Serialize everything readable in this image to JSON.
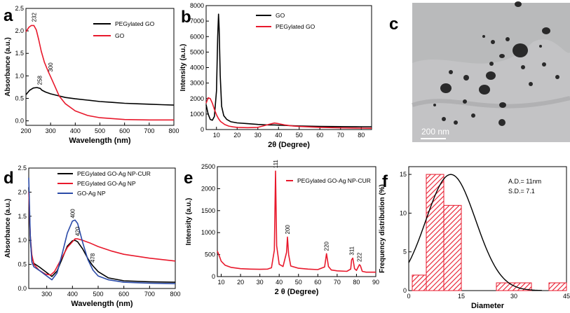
{
  "chart_data": [
    {
      "type": "line",
      "panel_label": "a",
      "xlabel": "Wavelength (nm)",
      "ylabel": "Absorbance (a.u.)",
      "xlim": [
        200,
        800
      ],
      "ylim": [
        -0.1,
        2.5
      ],
      "xticks": [
        200,
        300,
        400,
        500,
        600,
        700,
        800
      ],
      "yticks": [
        0.0,
        0.5,
        1.0,
        1.5,
        2.0,
        2.5
      ],
      "ytick_labels": [
        "0.0",
        "0.5",
        "1.0",
        "1.5",
        "2.0",
        "2.5"
      ],
      "legend_position": "top-right",
      "series": [
        {
          "name": "PEGylated GO",
          "color": "#000000",
          "x": [
            200,
            215,
            230,
            245,
            258,
            265,
            280,
            300,
            330,
            360,
            400,
            450,
            500,
            550,
            600,
            650,
            700,
            750,
            800
          ],
          "y": [
            0.58,
            0.68,
            0.73,
            0.74,
            0.72,
            0.68,
            0.64,
            0.6,
            0.56,
            0.52,
            0.49,
            0.46,
            0.43,
            0.41,
            0.39,
            0.38,
            0.37,
            0.36,
            0.35
          ]
        },
        {
          "name": "GO",
          "color": "#e8192c",
          "x": [
            200,
            212,
            222,
            232,
            242,
            252,
            262,
            275,
            290,
            300,
            315,
            335,
            360,
            400,
            450,
            500,
            600,
            700,
            800
          ],
          "y": [
            1.98,
            2.08,
            2.12,
            2.12,
            2.02,
            1.8,
            1.55,
            1.3,
            1.1,
            0.98,
            0.8,
            0.55,
            0.38,
            0.22,
            0.12,
            0.07,
            0.03,
            0.02,
            0.02
          ]
        }
      ],
      "annotations": [
        {
          "text": "232",
          "x": 232,
          "y": 2.12
        },
        {
          "text": "300",
          "x": 300,
          "y": 0.98
        },
        {
          "text": "258",
          "x": 258,
          "y": 0.72
        }
      ]
    },
    {
      "type": "line",
      "panel_label": "b",
      "xlabel": "2θ (Degree)",
      "ylabel": "Intensity (a.u.)",
      "xlim": [
        5,
        85
      ],
      "ylim": [
        0,
        8000
      ],
      "xticks": [
        10,
        20,
        30,
        40,
        50,
        60,
        70,
        80
      ],
      "yticks": [
        0,
        1000,
        2000,
        3000,
        4000,
        5000,
        6000,
        7000,
        8000
      ],
      "legend_position": "top-right",
      "series": [
        {
          "name": "GO",
          "color": "#000000",
          "x": [
            5,
            6,
            7,
            8,
            9,
            10,
            10.6,
            11,
            11.3,
            11.8,
            12.5,
            13.5,
            15,
            17,
            20,
            25,
            30,
            35,
            38,
            42,
            50,
            60,
            70,
            80,
            85
          ],
          "y": [
            1600,
            1000,
            650,
            600,
            850,
            2500,
            6000,
            7450,
            6500,
            3500,
            1500,
            900,
            650,
            500,
            430,
            380,
            330,
            300,
            300,
            270,
            230,
            200,
            190,
            180,
            180
          ]
        },
        {
          "name": "PEGylated GO",
          "color": "#e8192c",
          "x": [
            5,
            6,
            7,
            8,
            9,
            10,
            11,
            12,
            14,
            16,
            18,
            20,
            25,
            30,
            35,
            38,
            40,
            43,
            47,
            50,
            60,
            70,
            80,
            85
          ],
          "y": [
            1700,
            2050,
            2000,
            1700,
            1300,
            950,
            700,
            520,
            320,
            220,
            170,
            140,
            120,
            140,
            320,
            420,
            380,
            300,
            230,
            200,
            140,
            110,
            90,
            80
          ]
        }
      ]
    },
    {
      "type": "image",
      "panel_label": "c",
      "scale_bar": "200 nm"
    },
    {
      "type": "line",
      "panel_label": "d",
      "xlabel": "Wavelength (nm)",
      "ylabel": "Absorbance (a.u.)",
      "xlim": [
        230,
        800
      ],
      "ylim": [
        0.0,
        2.5
      ],
      "xticks": [
        300,
        400,
        500,
        600,
        700,
        800
      ],
      "yticks": [
        0.0,
        0.5,
        1.0,
        1.5,
        2.0,
        2.5
      ],
      "ytick_labels": [
        "0.0",
        "0.5",
        "1.0",
        "1.5",
        "2.0",
        "2.5"
      ],
      "legend_position": "top-right",
      "series": [
        {
          "name": "PEGylated GO-Ag NP-CUR",
          "color": "#000000",
          "x": [
            230,
            236,
            242,
            250,
            270,
            295,
            320,
            340,
            360,
            380,
            400,
            410,
            420,
            440,
            460,
            478,
            500,
            540,
            600,
            700,
            800
          ],
          "y": [
            2.1,
            1.0,
            0.65,
            0.52,
            0.45,
            0.35,
            0.25,
            0.36,
            0.62,
            0.88,
            0.99,
            1.0,
            0.97,
            0.82,
            0.62,
            0.48,
            0.35,
            0.22,
            0.16,
            0.14,
            0.13
          ]
        },
        {
          "name": "PEGylated GO-Ag NP",
          "color": "#e8192c",
          "x": [
            230,
            236,
            242,
            250,
            270,
            295,
            315,
            330,
            350,
            380,
            410,
            420,
            440,
            470,
            500,
            550,
            600,
            700,
            800
          ],
          "y": [
            2.0,
            1.1,
            0.7,
            0.5,
            0.38,
            0.3,
            0.28,
            0.35,
            0.55,
            0.85,
            1.03,
            1.03,
            1.0,
            0.94,
            0.87,
            0.78,
            0.71,
            0.63,
            0.57
          ]
        },
        {
          "name": "GO-Ag NP",
          "color": "#2b4ba8",
          "x": [
            230,
            236,
            242,
            250,
            270,
            295,
            320,
            340,
            360,
            380,
            400,
            410,
            420,
            440,
            460,
            480,
            500,
            540,
            600,
            700,
            800
          ],
          "y": [
            2.3,
            1.1,
            0.55,
            0.45,
            0.38,
            0.28,
            0.18,
            0.32,
            0.72,
            1.15,
            1.4,
            1.42,
            1.35,
            0.95,
            0.6,
            0.38,
            0.26,
            0.18,
            0.13,
            0.11,
            0.1
          ]
        }
      ],
      "annotations": [
        {
          "text": "400",
          "x": 400,
          "y": 1.4
        },
        {
          "text": "420",
          "x": 420,
          "y": 1.03
        },
        {
          "text": "478",
          "x": 478,
          "y": 0.48
        }
      ]
    },
    {
      "type": "line",
      "panel_label": "e",
      "xlabel": "2 θ (Degree)",
      "ylabel": "Intensity (a.u.)",
      "xlim": [
        8,
        90
      ],
      "ylim": [
        0,
        2500
      ],
      "xticks": [
        10,
        20,
        30,
        40,
        50,
        60,
        70,
        80,
        90
      ],
      "yticks": [
        0,
        500,
        1000,
        1500,
        2000,
        2500
      ],
      "legend_position": "top-right",
      "series": [
        {
          "name": "PEGylated GO-Ag NP-CUR",
          "color": "#e8192c",
          "x": [
            8,
            9,
            10,
            12,
            15,
            20,
            25,
            30,
            34,
            36,
            37.5,
            38.1,
            38.7,
            40,
            42,
            43.8,
            44.3,
            44.9,
            46,
            50,
            55,
            60,
            63.5,
            64.5,
            65.5,
            67,
            70,
            75,
            77,
            77.5,
            78.1,
            79,
            80,
            81.5,
            82,
            83,
            85,
            88,
            90
          ],
          "y": [
            580,
            470,
            350,
            260,
            210,
            180,
            170,
            165,
            170,
            200,
            600,
            2400,
            700,
            280,
            230,
            550,
            900,
            500,
            240,
            190,
            170,
            160,
            220,
            520,
            230,
            150,
            130,
            120,
            170,
            380,
            420,
            180,
            140,
            270,
            250,
            120,
            100,
            100,
            100
          ]
        }
      ],
      "annotations": [
        {
          "text": "111",
          "x": 38.1,
          "y": 2400
        },
        {
          "text": "200",
          "x": 44.3,
          "y": 900
        },
        {
          "text": "220",
          "x": 64.5,
          "y": 520
        },
        {
          "text": "311",
          "x": 77.5,
          "y": 420
        },
        {
          "text": "222",
          "x": 81.5,
          "y": 270
        }
      ]
    },
    {
      "type": "histogram",
      "panel_label": "f",
      "xlabel": "Diameter",
      "ylabel": "Frequency distribution (%)",
      "xlim": [
        0,
        45
      ],
      "ylim": [
        0,
        16
      ],
      "xticks": [
        0,
        15,
        30,
        45
      ],
      "yticks": [
        0,
        5,
        10,
        15
      ],
      "bins": [
        {
          "start": 1,
          "end": 5,
          "value": 2
        },
        {
          "start": 5,
          "end": 10,
          "value": 15
        },
        {
          "start": 10,
          "end": 15,
          "value": 11
        },
        {
          "start": 25,
          "end": 35,
          "value": 1
        },
        {
          "start": 40,
          "end": 45,
          "value": 1
        }
      ],
      "fit_curve": {
        "mean": 12,
        "sd": 7.1,
        "peak": 15,
        "x_start": 0,
        "x_end": 38
      },
      "bar_color": "#e8192c",
      "stats": [
        "A.D.= 11nm",
        "S.D.= 7.1"
      ]
    }
  ]
}
